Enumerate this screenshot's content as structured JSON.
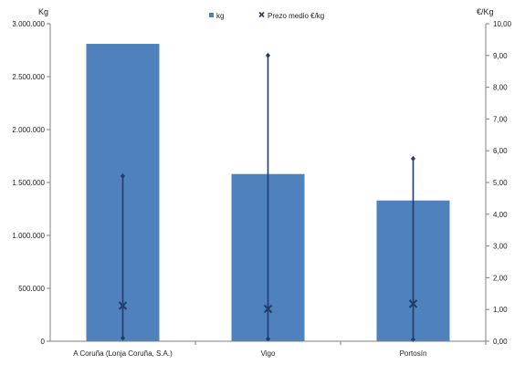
{
  "chart_data": {
    "type": "bar",
    "categories": [
      "A Coruña (Lonja Coruña, S.A.)",
      "Vigo",
      "Portosín"
    ],
    "series": [
      {
        "name": "kg",
        "axis": "left",
        "values": [
          2810000,
          1580000,
          1330000
        ],
        "color": "#4f81bd"
      },
      {
        "name": "Prezo medio €/kg",
        "axis": "right",
        "type": "scatter",
        "values": [
          1.12,
          1.02,
          1.18
        ],
        "min": [
          0.1,
          0.07,
          0.05
        ],
        "max": [
          5.2,
          9.0,
          5.75
        ],
        "color": "#1f3c6e"
      }
    ],
    "ylabel": "Kg",
    "y2label": "€/Kg",
    "ylim": [
      0,
      3000000
    ],
    "y2lim": [
      0,
      10
    ],
    "yticks": [
      "0",
      "500.000",
      "1.000.000",
      "1.500.000",
      "2.000.000",
      "2.500.000",
      "3.000.000"
    ],
    "y2ticks": [
      "0,00",
      "1,00",
      "2,00",
      "3,00",
      "4,00",
      "5,00",
      "6,00",
      "7,00",
      "8,00",
      "9,00",
      "10,00"
    ],
    "legend_position": "top-center",
    "grid": false
  }
}
